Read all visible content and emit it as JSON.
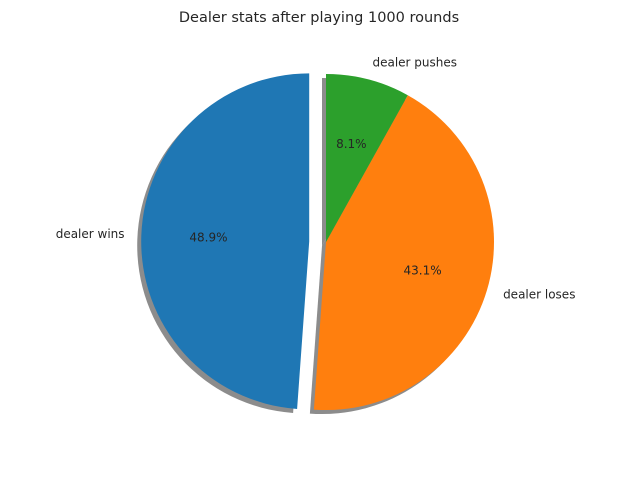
{
  "chart_data": {
    "type": "pie",
    "title": "Dealer stats after playing 1000 rounds",
    "labels": [
      "dealer wins",
      "dealer loses",
      "dealer pushes"
    ],
    "values": [
      48.9,
      43.1,
      8.1
    ],
    "percent_labels": [
      "48.9%",
      "43.1%",
      "8.1%"
    ],
    "colors": [
      "#1f77b4",
      "#ff7f0e",
      "#2ca02c"
    ],
    "explode": [
      0.1,
      0,
      0
    ],
    "start_angle_deg": 90,
    "shadow": true,
    "legend": "none"
  }
}
